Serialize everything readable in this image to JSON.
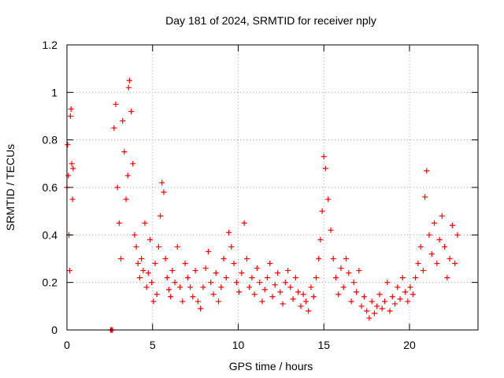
{
  "chart_data": {
    "type": "scatter",
    "title": "Day 181 of 2024, SRMTID for receiver nply",
    "xlabel": "GPS time / hours",
    "ylabel": "SRMTID / TECUs",
    "xlim": [
      0,
      24
    ],
    "ylim": [
      0,
      1.2
    ],
    "xticks": [
      0,
      5,
      10,
      15,
      20
    ],
    "yticks": [
      0,
      0.2,
      0.4,
      0.6,
      0.8,
      1,
      1.2
    ],
    "xtick_labels": [
      "0",
      "5",
      "10",
      "15",
      "20"
    ],
    "ytick_labels": [
      "0",
      "0.2",
      "0.4",
      "0.6",
      "0.8",
      "1",
      "1.2"
    ],
    "grid": true,
    "marker": "plus",
    "marker_color": "#ff0000",
    "series": [
      {
        "name": "SRMTID",
        "x": [
          0.0,
          0.04,
          0.08,
          0.12,
          0.16,
          0.2,
          0.24,
          0.28,
          0.32,
          0.36,
          2.55,
          2.6,
          2.65,
          2.75,
          2.85,
          2.95,
          3.05,
          3.15,
          3.25,
          3.35,
          3.45,
          3.55,
          3.6,
          3.65,
          3.75,
          3.85,
          3.95,
          4.05,
          4.15,
          4.25,
          4.35,
          4.45,
          4.55,
          4.65,
          4.75,
          4.85,
          4.95,
          5.05,
          5.15,
          5.25,
          5.35,
          5.45,
          5.55,
          5.65,
          5.75,
          5.85,
          5.95,
          6.05,
          6.15,
          6.3,
          6.45,
          6.6,
          6.75,
          6.9,
          7.05,
          7.2,
          7.35,
          7.5,
          7.65,
          7.8,
          7.95,
          8.1,
          8.25,
          8.4,
          8.55,
          8.7,
          8.85,
          9.0,
          9.15,
          9.3,
          9.45,
          9.6,
          9.75,
          9.9,
          10.05,
          10.2,
          10.35,
          10.5,
          10.65,
          10.8,
          10.95,
          11.1,
          11.25,
          11.4,
          11.55,
          11.7,
          11.85,
          12.0,
          12.15,
          12.3,
          12.45,
          12.6,
          12.75,
          12.9,
          13.05,
          13.2,
          13.35,
          13.5,
          13.65,
          13.8,
          13.95,
          14.1,
          14.25,
          14.4,
          14.55,
          14.7,
          14.8,
          14.9,
          15.0,
          15.1,
          15.25,
          15.4,
          15.55,
          15.7,
          15.85,
          16.0,
          16.15,
          16.3,
          16.45,
          16.6,
          16.75,
          16.9,
          17.05,
          17.2,
          17.35,
          17.5,
          17.65,
          17.8,
          17.95,
          18.1,
          18.25,
          18.4,
          18.55,
          18.7,
          18.85,
          19.0,
          19.15,
          19.3,
          19.45,
          19.6,
          19.75,
          19.9,
          20.05,
          20.2,
          20.35,
          20.5,
          20.65,
          20.8,
          20.9,
          21.0,
          21.15,
          21.3,
          21.45,
          21.6,
          21.75,
          21.9,
          22.05,
          22.2,
          22.35,
          22.5,
          22.65,
          22.8
        ],
        "y": [
          0.6,
          0.78,
          0.65,
          0.4,
          0.25,
          0.9,
          0.93,
          0.7,
          0.55,
          0.68,
          0.0,
          0.0,
          0.0,
          0.85,
          0.95,
          0.6,
          0.45,
          0.3,
          0.88,
          0.75,
          0.55,
          0.65,
          1.02,
          1.05,
          0.92,
          0.7,
          0.4,
          0.35,
          0.28,
          0.22,
          0.3,
          0.25,
          0.45,
          0.18,
          0.24,
          0.38,
          0.2,
          0.12,
          0.28,
          0.15,
          0.35,
          0.48,
          0.62,
          0.58,
          0.3,
          0.22,
          0.17,
          0.14,
          0.25,
          0.2,
          0.35,
          0.18,
          0.12,
          0.28,
          0.22,
          0.18,
          0.14,
          0.25,
          0.12,
          0.09,
          0.18,
          0.26,
          0.33,
          0.2,
          0.15,
          0.24,
          0.12,
          0.18,
          0.3,
          0.22,
          0.41,
          0.35,
          0.28,
          0.2,
          0.16,
          0.24,
          0.45,
          0.3,
          0.18,
          0.22,
          0.15,
          0.26,
          0.2,
          0.12,
          0.17,
          0.22,
          0.28,
          0.14,
          0.19,
          0.24,
          0.16,
          0.11,
          0.2,
          0.25,
          0.18,
          0.13,
          0.22,
          0.16,
          0.1,
          0.15,
          0.12,
          0.08,
          0.18,
          0.14,
          0.22,
          0.3,
          0.38,
          0.5,
          0.73,
          0.68,
          0.55,
          0.42,
          0.3,
          0.22,
          0.15,
          0.26,
          0.18,
          0.3,
          0.24,
          0.12,
          0.2,
          0.16,
          0.25,
          0.1,
          0.14,
          0.08,
          0.05,
          0.12,
          0.07,
          0.1,
          0.15,
          0.09,
          0.12,
          0.2,
          0.08,
          0.14,
          0.11,
          0.18,
          0.13,
          0.22,
          0.16,
          0.12,
          0.18,
          0.15,
          0.22,
          0.28,
          0.35,
          0.25,
          0.56,
          0.67,
          0.4,
          0.32,
          0.45,
          0.28,
          0.38,
          0.48,
          0.35,
          0.22,
          0.3,
          0.44,
          0.28,
          0.4
        ]
      }
    ]
  }
}
